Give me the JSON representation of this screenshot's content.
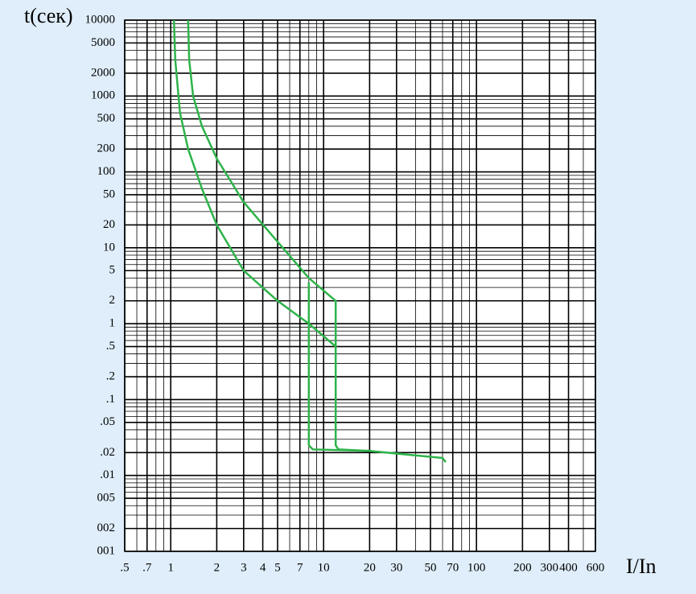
{
  "chart_data": {
    "type": "line",
    "y_label": "t(сек)",
    "x_label": "I/In",
    "x_scale": "log",
    "y_scale": "log",
    "grid": true,
    "minor_grid": true,
    "xlim": [
      0.5,
      600
    ],
    "ylim": [
      0.001,
      10000
    ],
    "xticks": [
      {
        "value": 0.5,
        "label": ".5"
      },
      {
        "value": 0.7,
        "label": ".7"
      },
      1,
      2,
      3,
      4,
      5,
      7,
      10,
      20,
      30,
      50,
      70,
      100,
      200,
      300,
      400,
      600
    ],
    "yticks": [
      10000,
      5000,
      2000,
      1000,
      500,
      200,
      100,
      50,
      20,
      10,
      5,
      2,
      1,
      {
        "value": 0.5,
        "label": ".5"
      },
      {
        "value": 0.2,
        "label": ".2"
      },
      {
        "value": 0.1,
        "label": ".1"
      },
      {
        "value": 0.05,
        "label": ".05"
      },
      {
        "value": 0.02,
        "label": ".02"
      },
      {
        "value": 0.01,
        "label": ".01"
      },
      {
        "value": 0.005,
        "label": "005"
      },
      {
        "value": 0.002,
        "label": "002"
      },
      {
        "value": 0.001,
        "label": "001"
      }
    ],
    "series": [
      {
        "color": "#2eb34a",
        "x": [
          1.3,
          1.32,
          1.4,
          1.6,
          2,
          3,
          5,
          8,
          12,
          12,
          12.5,
          20,
          60,
          63
        ],
        "values": [
          10000,
          3000,
          1000,
          400,
          150,
          40,
          12,
          4,
          2,
          0.025,
          0.022,
          0.021,
          0.017,
          0.015
        ]
      },
      {
        "color": "#2eb34a",
        "x": [
          1.05,
          1.07,
          1.15,
          1.3,
          1.6,
          2,
          3,
          5,
          8,
          12
        ],
        "values": [
          10000,
          3000,
          600,
          200,
          60,
          20,
          5,
          2,
          1,
          0.5
        ]
      },
      {
        "color": "#2eb34a",
        "x": [
          8,
          8,
          8.5,
          20
        ],
        "values": [
          3.5,
          0.025,
          0.022,
          0.021
        ]
      }
    ]
  }
}
